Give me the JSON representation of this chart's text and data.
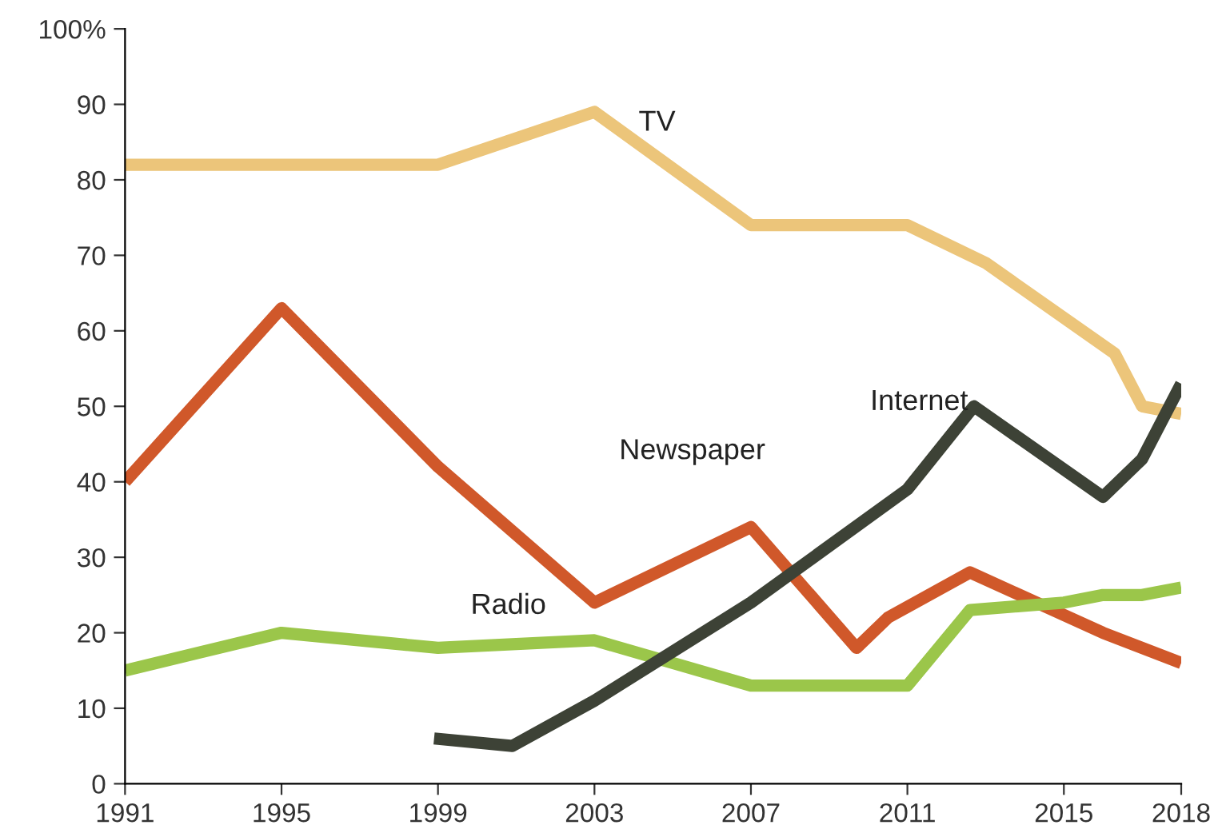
{
  "chart_data": {
    "type": "line",
    "xlim": [
      1991,
      2018
    ],
    "xticks": [
      1991,
      1995,
      1999,
      2003,
      2007,
      2011,
      2015,
      2018
    ],
    "ylim": [
      0,
      100
    ],
    "yticks": [
      0,
      10,
      20,
      30,
      40,
      50,
      60,
      70,
      80,
      90,
      {
        "value": 100,
        "label": "100%"
      }
    ],
    "grid": false,
    "legend": false,
    "marker": "none",
    "line_style": "solid",
    "series": [
      {
        "name": "TV",
        "color": "#ecc57a",
        "x": [
          1991,
          1999,
          2003,
          2007,
          2011,
          2013,
          2016.3,
          2017,
          2018
        ],
        "values": [
          82,
          82,
          89,
          74,
          74,
          69,
          57,
          50,
          49
        ]
      },
      {
        "name": "Newspaper",
        "color": "#d0582a",
        "x": [
          1991,
          1995,
          1999,
          2003,
          2007,
          2009.7,
          2010.5,
          2012.6,
          2016,
          2018
        ],
        "values": [
          40,
          63,
          42,
          24,
          34,
          18,
          22,
          28,
          20,
          16
        ]
      },
      {
        "name": "Radio",
        "color": "#9bc64a",
        "x": [
          1991,
          1995,
          1999,
          2003,
          2007,
          2011,
          2012.6,
          2015,
          2016,
          2017,
          2018
        ],
        "values": [
          15,
          20,
          18,
          19,
          13,
          13,
          23,
          24,
          25,
          25,
          26
        ]
      },
      {
        "name": "Internet",
        "color": "#3d4236",
        "x": [
          1998.9,
          2000.9,
          2003,
          2007,
          2011,
          2012.7,
          2016,
          2017,
          2018
        ],
        "values": [
          6,
          5,
          11,
          24,
          39,
          50,
          38,
          43,
          53
        ]
      }
    ]
  }
}
